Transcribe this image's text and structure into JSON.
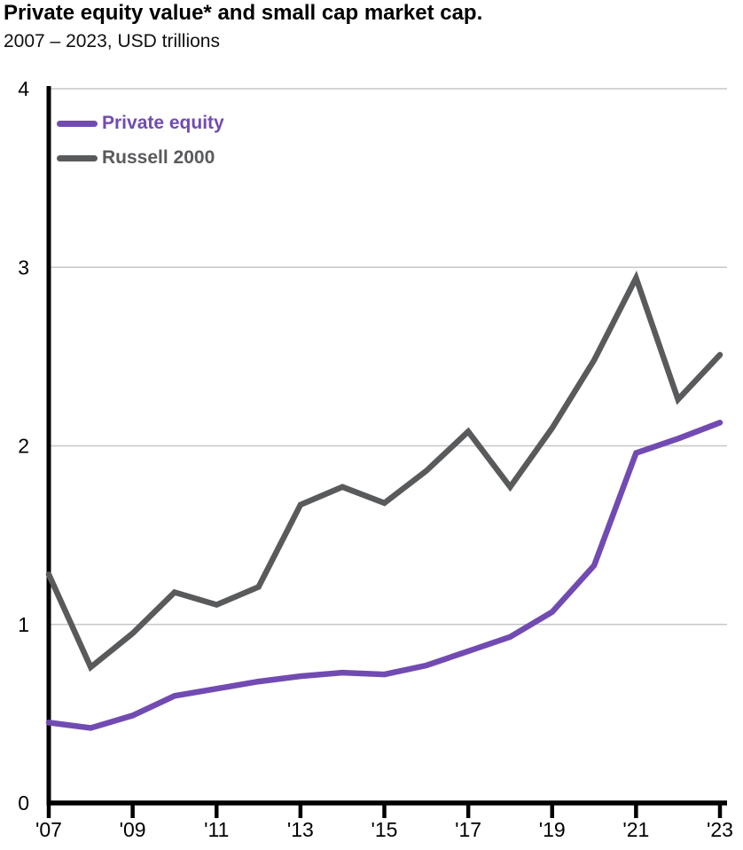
{
  "header": {
    "title": "Private equity value* and small cap market cap.",
    "subtitle": "2007 – 2023, USD trillions"
  },
  "chart_data": {
    "type": "line",
    "title": "Private equity value* and small cap market cap.",
    "subtitle": "2007 – 2023, USD trillions",
    "x": [
      2007,
      2008,
      2009,
      2010,
      2011,
      2012,
      2013,
      2014,
      2015,
      2016,
      2017,
      2018,
      2019,
      2020,
      2021,
      2022,
      2023
    ],
    "series": [
      {
        "name": "Private equity",
        "color": "#714bb2",
        "values": [
          0.45,
          0.42,
          0.49,
          0.6,
          0.64,
          0.68,
          0.71,
          0.73,
          0.72,
          0.77,
          0.85,
          0.93,
          1.07,
          1.33,
          1.96,
          2.04,
          2.13
        ]
      },
      {
        "name": "Russell 2000",
        "color": "#595a5c",
        "values": [
          1.28,
          0.76,
          0.95,
          1.18,
          1.11,
          1.21,
          1.67,
          1.77,
          1.68,
          1.86,
          2.08,
          1.77,
          2.1,
          2.48,
          2.94,
          2.26,
          2.51
        ]
      }
    ],
    "xlabel": "",
    "ylabel": "",
    "ylim": [
      0,
      4
    ],
    "yticks": [
      0,
      1,
      2,
      3,
      4
    ],
    "ytick_labels": [
      "0",
      "1",
      "2",
      "3",
      "4"
    ],
    "xtick_years": [
      2007,
      2009,
      2011,
      2013,
      2015,
      2017,
      2019,
      2021,
      2023
    ],
    "xtick_labels": [
      "'07",
      "'09",
      "'11",
      "'13",
      "'15",
      "'17",
      "'19",
      "'21",
      "'23"
    ],
    "grid": "horizontal",
    "legend_position": "top-left",
    "colors": {
      "axis": "#000000",
      "gridline": "#c7c7c8",
      "tick_label": "#000000",
      "background": "#ffffff"
    }
  }
}
